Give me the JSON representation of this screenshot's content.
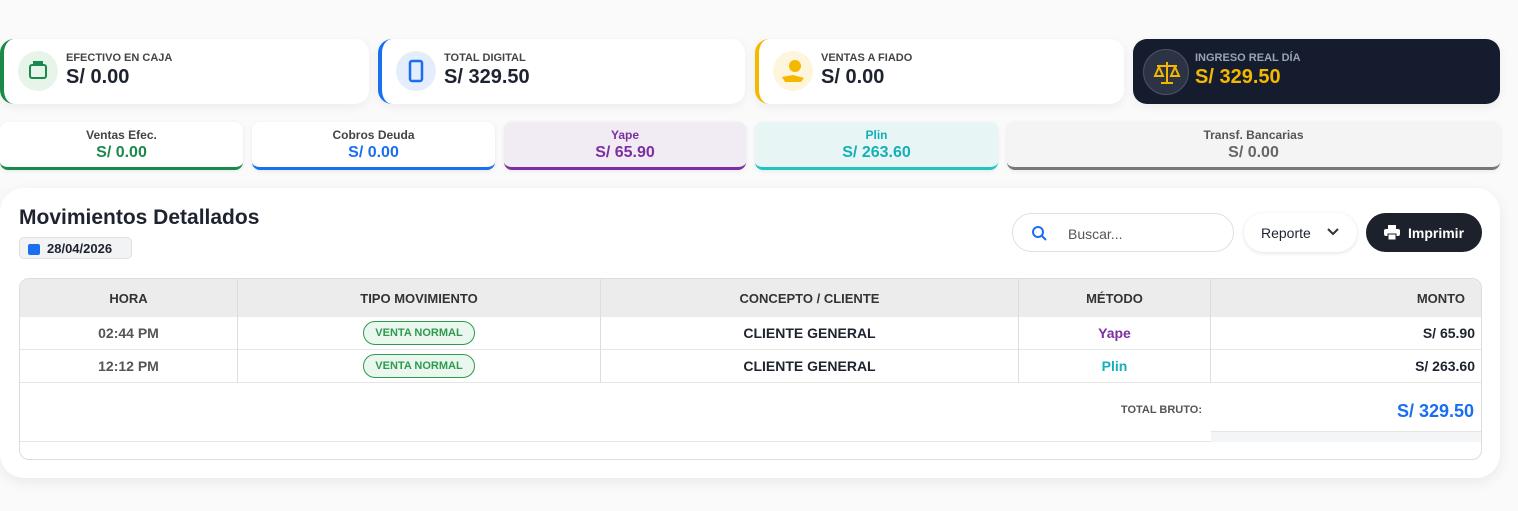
{
  "summary_cards": [
    {
      "label": "EFECTIVO EN CAJA",
      "amount": "S/ 0.00"
    },
    {
      "label": "TOTAL DIGITAL",
      "amount": "S/ 329.50"
    },
    {
      "label": "VENTAS A FIADO",
      "amount": "S/ 0.00"
    },
    {
      "label": "INGRESO REAL DÍA",
      "amount": "S/ 329.50"
    }
  ],
  "method_cards": [
    {
      "label": "Ventas Efec.",
      "amount": "S/ 0.00"
    },
    {
      "label": "Cobros Deuda",
      "amount": "S/ 0.00"
    },
    {
      "label": "Yape",
      "amount": "S/ 65.90"
    },
    {
      "label": "Plin",
      "amount": "S/ 263.60"
    },
    {
      "label": "Transf. Bancarias",
      "amount": "S/ 0.00"
    }
  ],
  "panel": {
    "title": "Movimientos Detallados",
    "date": "28/04/2026",
    "search_placeholder": "Buscar...",
    "report_button": "Reporte",
    "print_button": "Imprimir"
  },
  "table": {
    "headers": [
      "HORA",
      "TIPO MOVIMIENTO",
      "CONCEPTO / CLIENTE",
      "MÉTODO",
      "MONTO"
    ],
    "rows": [
      [
        "02:44 PM",
        "VENTA NORMAL",
        "CLIENTE GENERAL",
        "Yape",
        "S/ 65.90"
      ],
      [
        "12:12 PM",
        "VENTA NORMAL",
        "CLIENTE GENERAL",
        "Plin",
        "S/ 263.60"
      ]
    ],
    "total_label": "TOTAL BRUTO:",
    "total": "S/ 329.50"
  }
}
